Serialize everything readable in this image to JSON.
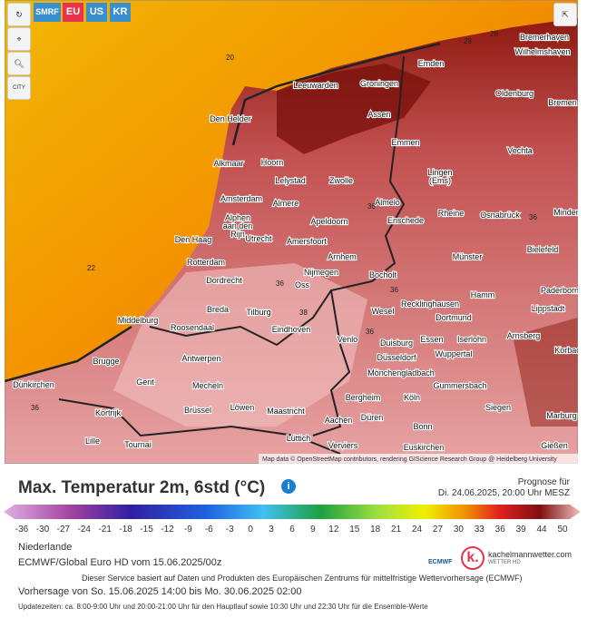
{
  "toolbar": {
    "logo": "SMRF",
    "models": [
      "EU",
      "US",
      "KR"
    ],
    "city_button": "CITY"
  },
  "map": {
    "cities": [
      "Bremerhaven",
      "Wilhelmshaven",
      "Emden",
      "Groningen",
      "Leeuwarden",
      "Oldenburg",
      "Bremen",
      "Den Helder",
      "Assen",
      "Emmen",
      "Vechta",
      "Alkmaar",
      "Hoorn",
      "Lelystad",
      "Zwolle",
      "Lingen\n(Ems)",
      "Amsterdam",
      "Almere",
      "Almelo",
      "Enschede",
      "Rheine",
      "Osnabrück",
      "Minden",
      "Alphen\naan den\nRijn",
      "Apeldoorn",
      "Den Haag",
      "Utrecht",
      "Amersfoort",
      "Bielefeld",
      "Arnhem",
      "Münster",
      "Rotterdam",
      "Nijmegen",
      "Bocholt",
      "Dordrecht",
      "Oss",
      "Paderborn",
      "Hamm",
      "Recklinghausen",
      "Breda",
      "Tilburg",
      "Lippstadt",
      "Dortmund",
      "Roosendaal",
      "Eindhoven",
      "Wesel",
      "Middelburg",
      "Venlo",
      "Essen",
      "Iserlohn",
      "Arnsberg",
      "Duisburg",
      "Düsseldorf",
      "Wuppertal",
      "Korbach",
      "Brugge",
      "Antwerpen",
      "Mönchengladbach",
      "Gummersbach",
      "Dünkirchen",
      "Gent",
      "Mecheln",
      "Bergheim",
      "Köln",
      "Siegen",
      "Kortrijk",
      "Brüssel",
      "Löwen",
      "Maastricht",
      "Aachen",
      "Düren",
      "Marburg",
      "Bonn",
      "Lille",
      "Tournai",
      "Lüttich",
      "Verviers",
      "Euskirchen",
      "Gießen"
    ],
    "contour_labels": [
      "20",
      "22",
      "28",
      "28",
      "36",
      "38",
      "36",
      "36",
      "36",
      "36",
      "36"
    ],
    "attribution": "Map data © OpenStreetMap contributors, rendering GIScience Research Group @ Heidelberg University"
  },
  "header": {
    "title": "Max. Temperatur 2m, 6std (°C)",
    "forecast_label": "Prognose für",
    "forecast_time": "Di. 24.06.2025, 20:00 Uhr MESZ"
  },
  "colorbar": {
    "ticks": [
      -36,
      -30,
      -27,
      -24,
      -21,
      -18,
      -15,
      -12,
      -9,
      -6,
      -3,
      0,
      3,
      6,
      9,
      12,
      15,
      18,
      21,
      24,
      27,
      30,
      33,
      36,
      39,
      44,
      50
    ]
  },
  "footer": {
    "region": "Niederlande",
    "model": "ECMWF/Global Euro HD vom 15.06.2025/00z",
    "ecmwf_logo": "ECMWF",
    "brand": "kachelmannwetter.com",
    "brand_sub": "WETTER HD",
    "service": "Dieser Service basiert auf Daten und Produkten des Europäischen Zentrums für mittelfristige Wettervorhersage (ECMWF)",
    "period": "Vorhersage von So. 15.06.2025 14:00 bis Mo. 30.06.2025 02:00",
    "updates": "Updatezeiten: ca. 8:00-9:00 Uhr und 20:00-21:00 Uhr für den Hauptlauf sowie 10:30 Uhr und 22:30 Uhr für die Ensemble-Werte"
  }
}
